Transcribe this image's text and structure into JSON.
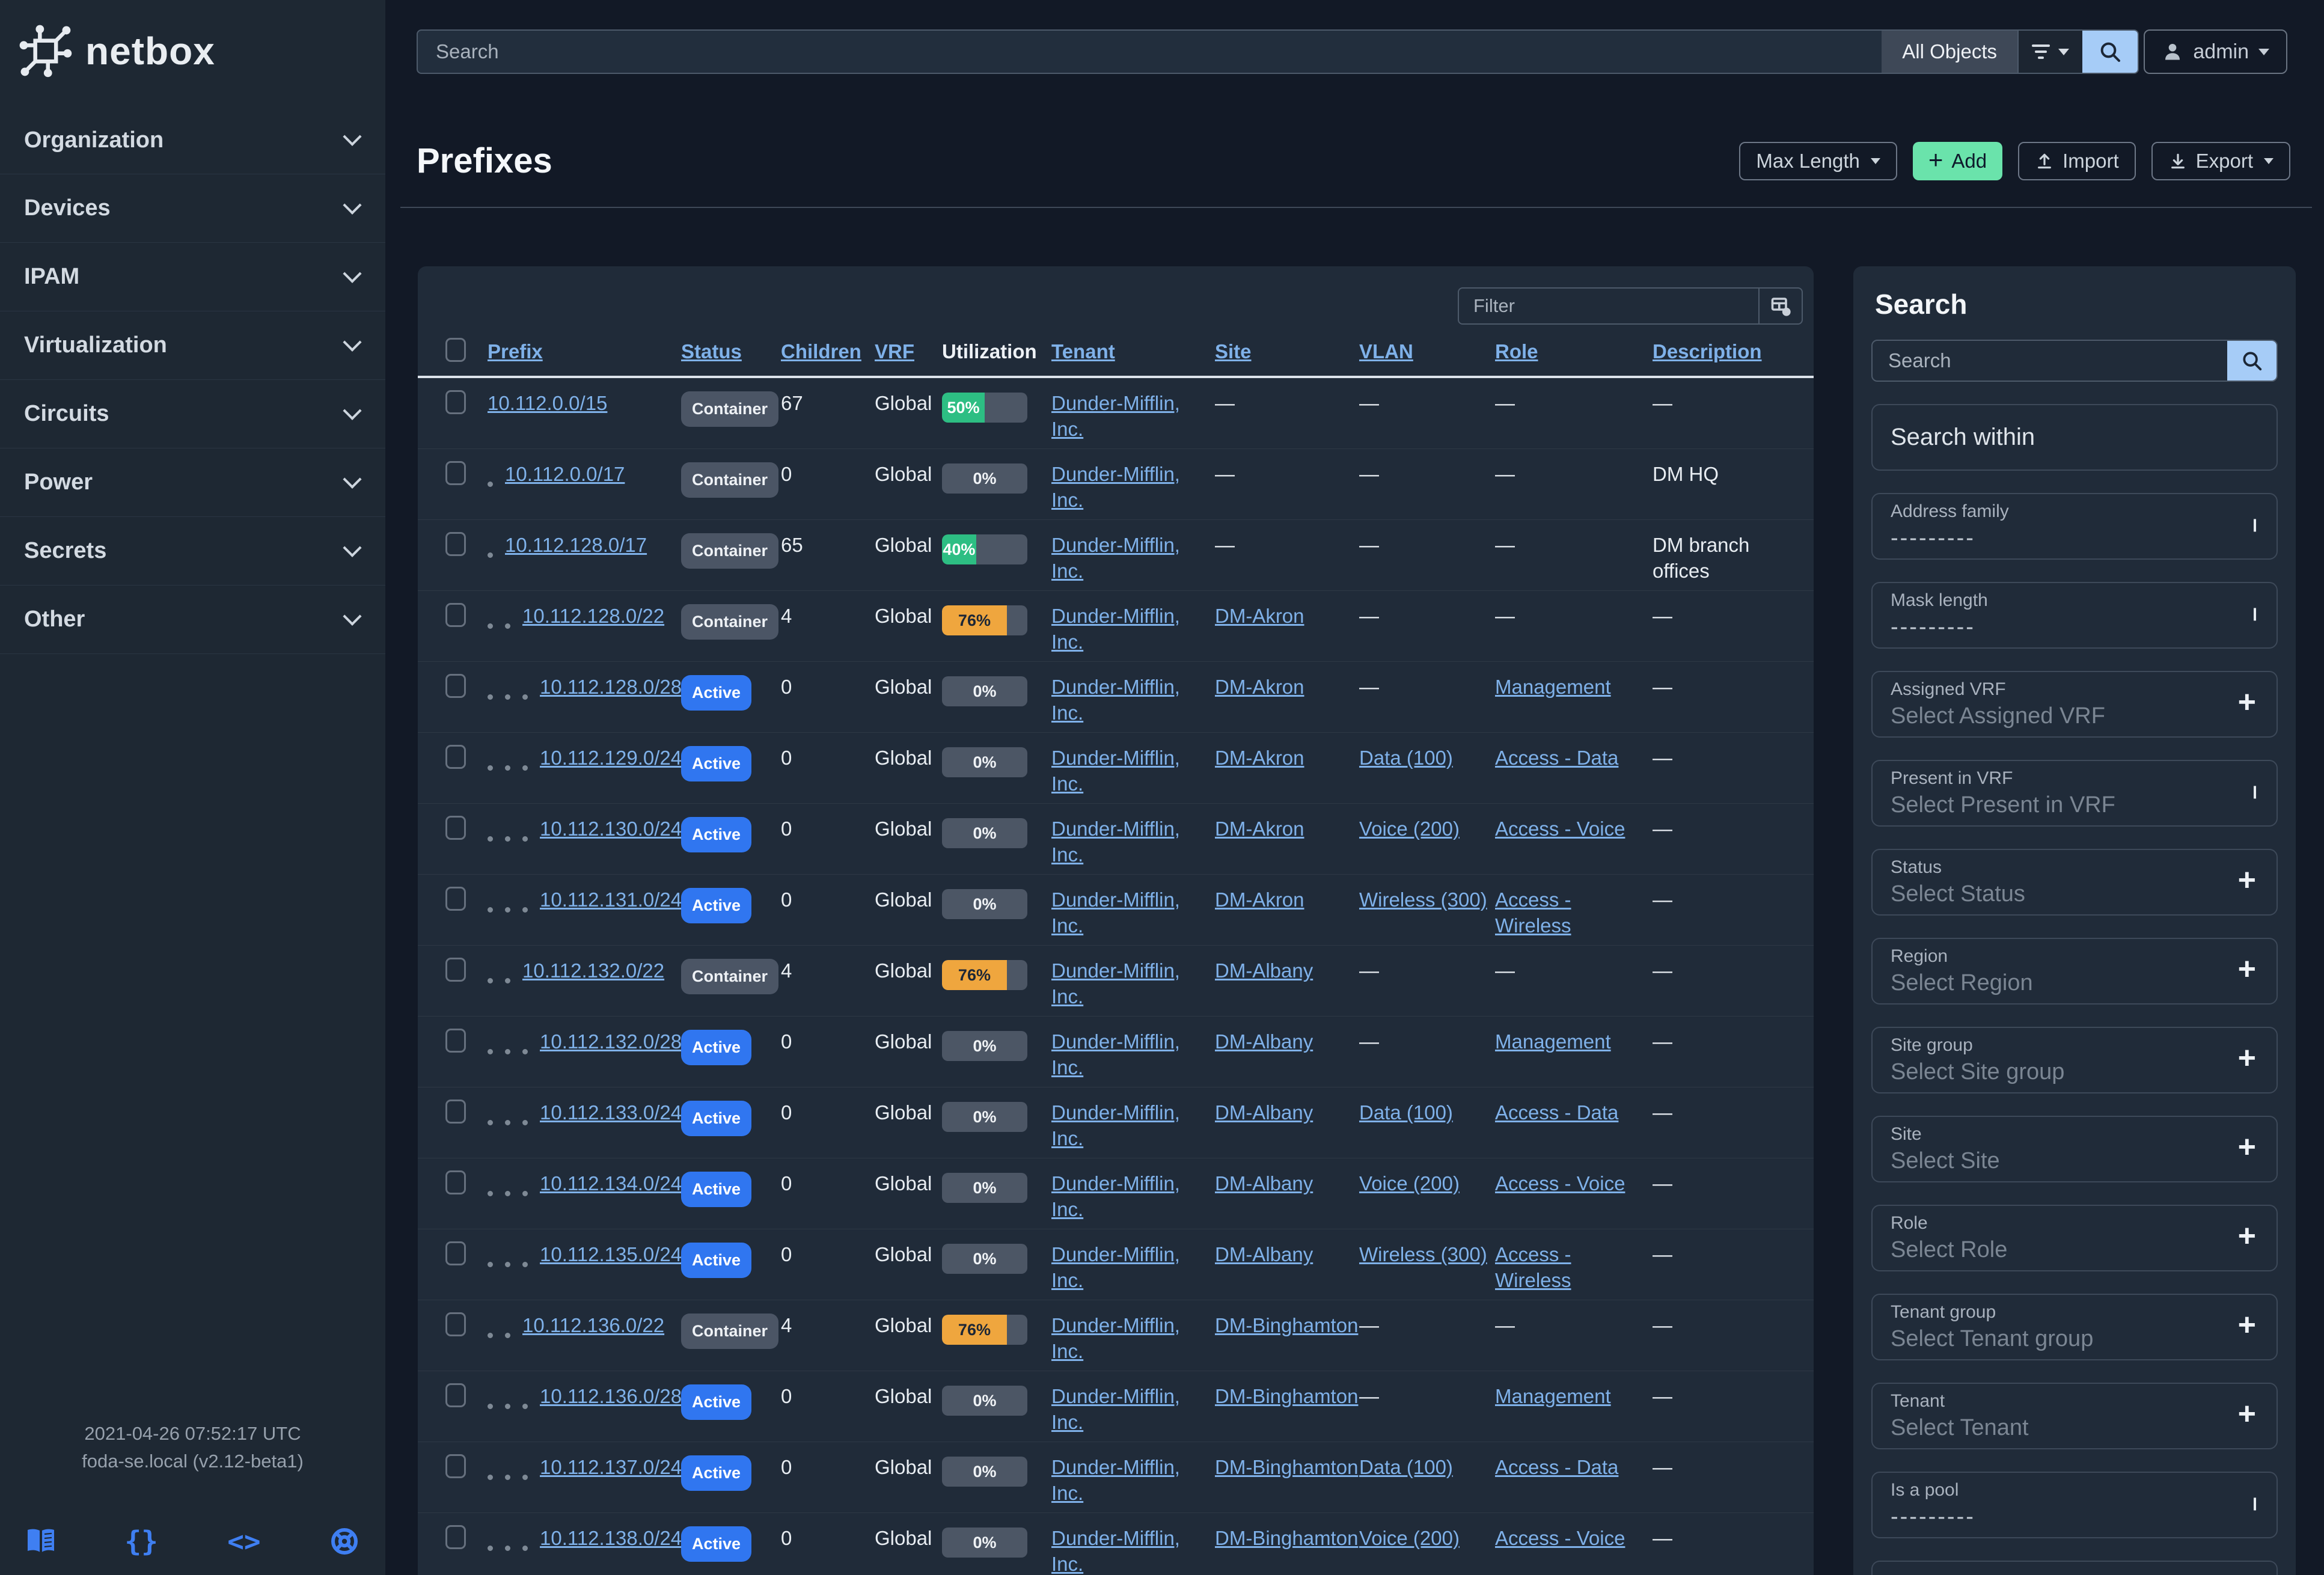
{
  "brand": {
    "logo_text": "netbox"
  },
  "topbar": {
    "search_placeholder": "Search",
    "scope": "All Objects",
    "user": "admin"
  },
  "sidebar": {
    "items": [
      "Organization",
      "Devices",
      "IPAM",
      "Virtualization",
      "Circuits",
      "Power",
      "Secrets",
      "Other"
    ],
    "footer": {
      "timestamp": "2021-04-26 07:52:17 UTC",
      "host": "foda-se.local (v2.12-beta1)",
      "icons": [
        "docs-book",
        "api-braces",
        "code-brackets",
        "help-lifebuoy"
      ]
    }
  },
  "page": {
    "title": "Prefixes",
    "max_length_label": "Max Length",
    "add_label": "Add",
    "import_label": "Import",
    "export_label": "Export"
  },
  "table": {
    "filter_placeholder": "Filter",
    "empty_cell": "—",
    "columns": [
      {
        "key": "prefix",
        "label": "Prefix",
        "link": true
      },
      {
        "key": "status",
        "label": "Status",
        "link": true
      },
      {
        "key": "children",
        "label": "Children",
        "link": true
      },
      {
        "key": "vrf",
        "label": "VRF",
        "link": true
      },
      {
        "key": "utilization",
        "label": "Utilization",
        "link": false
      },
      {
        "key": "tenant",
        "label": "Tenant",
        "link": true
      },
      {
        "key": "site",
        "label": "Site",
        "link": true
      },
      {
        "key": "vlan",
        "label": "VLAN",
        "link": true
      },
      {
        "key": "role",
        "label": "Role",
        "link": true
      },
      {
        "key": "description",
        "label": "Description",
        "link": true
      }
    ],
    "rows": [
      {
        "prefix": "10.112.0.0/15",
        "depth": 0,
        "status": "Container",
        "children": "67",
        "vrf": "Global",
        "util_pct": 50,
        "util_color": "green",
        "tenant": "Dunder-Mifflin, Inc.",
        "site": "",
        "vlan": "",
        "role": "",
        "description": ""
      },
      {
        "prefix": "10.112.0.0/17",
        "depth": 1,
        "status": "Container",
        "children": "0",
        "vrf": "Global",
        "util_pct": 0,
        "util_color": "none",
        "tenant": "Dunder-Mifflin, Inc.",
        "site": "",
        "vlan": "",
        "role": "",
        "description": "DM HQ"
      },
      {
        "prefix": "10.112.128.0/17",
        "depth": 1,
        "status": "Container",
        "children": "65",
        "vrf": "Global",
        "util_pct": 40,
        "util_color": "green",
        "tenant": "Dunder-Mifflin, Inc.",
        "site": "",
        "vlan": "",
        "role": "",
        "description": "DM branch offices"
      },
      {
        "prefix": "10.112.128.0/22",
        "depth": 2,
        "status": "Container",
        "children": "4",
        "vrf": "Global",
        "util_pct": 76,
        "util_color": "orange",
        "tenant": "Dunder-Mifflin, Inc.",
        "site": "DM-Akron",
        "vlan": "",
        "role": "",
        "description": ""
      },
      {
        "prefix": "10.112.128.0/28",
        "depth": 3,
        "status": "Active",
        "children": "0",
        "vrf": "Global",
        "util_pct": 0,
        "util_color": "none",
        "tenant": "Dunder-Mifflin, Inc.",
        "site": "DM-Akron",
        "vlan": "",
        "role": "Management",
        "description": ""
      },
      {
        "prefix": "10.112.129.0/24",
        "depth": 3,
        "status": "Active",
        "children": "0",
        "vrf": "Global",
        "util_pct": 0,
        "util_color": "none",
        "tenant": "Dunder-Mifflin, Inc.",
        "site": "DM-Akron",
        "vlan": "Data (100)",
        "role": "Access - Data",
        "description": ""
      },
      {
        "prefix": "10.112.130.0/24",
        "depth": 3,
        "status": "Active",
        "children": "0",
        "vrf": "Global",
        "util_pct": 0,
        "util_color": "none",
        "tenant": "Dunder-Mifflin, Inc.",
        "site": "DM-Akron",
        "vlan": "Voice (200)",
        "role": "Access - Voice",
        "description": ""
      },
      {
        "prefix": "10.112.131.0/24",
        "depth": 3,
        "status": "Active",
        "children": "0",
        "vrf": "Global",
        "util_pct": 0,
        "util_color": "none",
        "tenant": "Dunder-Mifflin, Inc.",
        "site": "DM-Akron",
        "vlan": "Wireless (300)",
        "role": "Access - Wireless",
        "description": ""
      },
      {
        "prefix": "10.112.132.0/22",
        "depth": 2,
        "status": "Container",
        "children": "4",
        "vrf": "Global",
        "util_pct": 76,
        "util_color": "orange",
        "tenant": "Dunder-Mifflin, Inc.",
        "site": "DM-Albany",
        "vlan": "",
        "role": "",
        "description": ""
      },
      {
        "prefix": "10.112.132.0/28",
        "depth": 3,
        "status": "Active",
        "children": "0",
        "vrf": "Global",
        "util_pct": 0,
        "util_color": "none",
        "tenant": "Dunder-Mifflin, Inc.",
        "site": "DM-Albany",
        "vlan": "",
        "role": "Management",
        "description": ""
      },
      {
        "prefix": "10.112.133.0/24",
        "depth": 3,
        "status": "Active",
        "children": "0",
        "vrf": "Global",
        "util_pct": 0,
        "util_color": "none",
        "tenant": "Dunder-Mifflin, Inc.",
        "site": "DM-Albany",
        "vlan": "Data (100)",
        "role": "Access - Data",
        "description": ""
      },
      {
        "prefix": "10.112.134.0/24",
        "depth": 3,
        "status": "Active",
        "children": "0",
        "vrf": "Global",
        "util_pct": 0,
        "util_color": "none",
        "tenant": "Dunder-Mifflin, Inc.",
        "site": "DM-Albany",
        "vlan": "Voice (200)",
        "role": "Access - Voice",
        "description": ""
      },
      {
        "prefix": "10.112.135.0/24",
        "depth": 3,
        "status": "Active",
        "children": "0",
        "vrf": "Global",
        "util_pct": 0,
        "util_color": "none",
        "tenant": "Dunder-Mifflin, Inc.",
        "site": "DM-Albany",
        "vlan": "Wireless (300)",
        "role": "Access - Wireless",
        "description": ""
      },
      {
        "prefix": "10.112.136.0/22",
        "depth": 2,
        "status": "Container",
        "children": "4",
        "vrf": "Global",
        "util_pct": 76,
        "util_color": "orange",
        "tenant": "Dunder-Mifflin, Inc.",
        "site": "DM-Binghamton",
        "vlan": "",
        "role": "",
        "description": ""
      },
      {
        "prefix": "10.112.136.0/28",
        "depth": 3,
        "status": "Active",
        "children": "0",
        "vrf": "Global",
        "util_pct": 0,
        "util_color": "none",
        "tenant": "Dunder-Mifflin, Inc.",
        "site": "DM-Binghamton",
        "vlan": "",
        "role": "Management",
        "description": ""
      },
      {
        "prefix": "10.112.137.0/24",
        "depth": 3,
        "status": "Active",
        "children": "0",
        "vrf": "Global",
        "util_pct": 0,
        "util_color": "none",
        "tenant": "Dunder-Mifflin, Inc.",
        "site": "DM-Binghamton",
        "vlan": "Data (100)",
        "role": "Access - Data",
        "description": ""
      },
      {
        "prefix": "10.112.138.0/24",
        "depth": 3,
        "status": "Active",
        "children": "0",
        "vrf": "Global",
        "util_pct": 0,
        "util_color": "none",
        "tenant": "Dunder-Mifflin, Inc.",
        "site": "DM-Binghamton",
        "vlan": "Voice (200)",
        "role": "Access - Voice",
        "description": ""
      }
    ]
  },
  "filters": {
    "heading": "Search",
    "search_placeholder": "Search",
    "fields": [
      {
        "label": "Search within",
        "type": "plain",
        "value": "",
        "control": "none"
      },
      {
        "label": "Address family",
        "type": "select",
        "value": "---------",
        "control": "chevron",
        "dashes": true
      },
      {
        "label": "Mask length",
        "type": "select",
        "value": "---------",
        "control": "chevron",
        "dashes": true
      },
      {
        "label": "Assigned VRF",
        "type": "select",
        "value": "Select Assigned VRF",
        "control": "plus"
      },
      {
        "label": "Present in VRF",
        "type": "select",
        "value": "Select Present in VRF",
        "control": "chevron"
      },
      {
        "label": "Status",
        "type": "select",
        "value": "Select Status",
        "control": "plus"
      },
      {
        "label": "Region",
        "type": "select",
        "value": "Select Region",
        "control": "plus"
      },
      {
        "label": "Site group",
        "type": "select",
        "value": "Select Site group",
        "control": "plus"
      },
      {
        "label": "Site",
        "type": "select",
        "value": "Select Site",
        "control": "plus"
      },
      {
        "label": "Role",
        "type": "select",
        "value": "Select Role",
        "control": "plus"
      },
      {
        "label": "Tenant group",
        "type": "select",
        "value": "Select Tenant group",
        "control": "plus"
      },
      {
        "label": "Tenant",
        "type": "select",
        "value": "Select Tenant",
        "control": "plus"
      },
      {
        "label": "Is a pool",
        "type": "select",
        "value": "---------",
        "control": "chevron",
        "dashes": true
      },
      {
        "label": "",
        "type": "partial",
        "value": "",
        "control": "none"
      }
    ]
  },
  "colors": {
    "util_green": "#2dbe83",
    "util_orange": "#efa63e",
    "util_track": "#4c5665",
    "util_green_text": "#ffffff",
    "util_orange_text": "#1d2736",
    "badge_active": "#3076f0",
    "badge_container": "#4b5565",
    "search_button_blue": "#a6ccf7",
    "add_button_green": "#6ae3ab",
    "add_button_text": "#0e1a2b",
    "link_blue": "#7fb1e9",
    "footer_icon_blue": "#3f7ff2"
  }
}
